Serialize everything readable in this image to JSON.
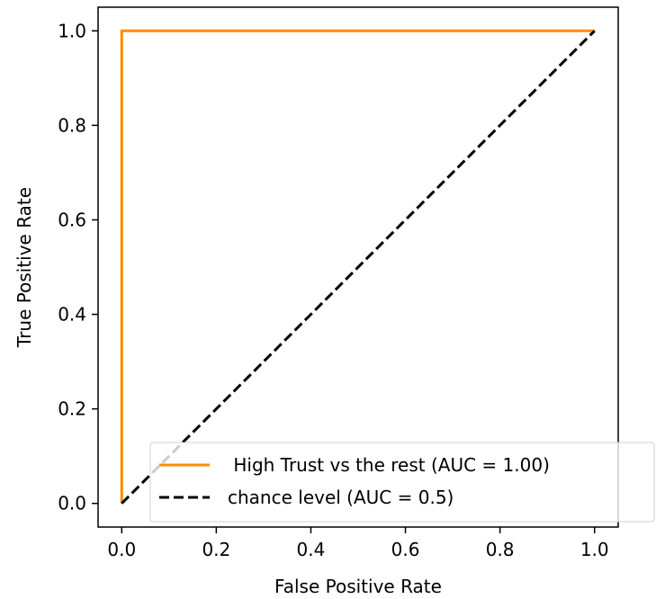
{
  "chart_data": {
    "type": "line",
    "title": "",
    "xlabel": "False Positive Rate",
    "ylabel": "True Positive Rate",
    "xlim": [
      -0.05,
      1.05
    ],
    "ylim": [
      -0.05,
      1.05
    ],
    "xticks": [
      0.0,
      0.2,
      0.4,
      0.6,
      0.8,
      1.0
    ],
    "xtick_labels": [
      "0.0",
      "0.2",
      "0.4",
      "0.6",
      "0.8",
      "1.0"
    ],
    "yticks": [
      0.0,
      0.2,
      0.4,
      0.6,
      0.8,
      1.0
    ],
    "ytick_labels": [
      "0.0",
      "0.2",
      "0.4",
      "0.6",
      "0.8",
      "1.0"
    ],
    "grid": false,
    "legend_position": "lower-right",
    "series": [
      {
        "name": " High Trust vs the rest (AUC = 1.00)",
        "color": "#ff8c00",
        "style": "solid",
        "x": [
          0.0,
          0.0,
          1.0
        ],
        "y": [
          0.0,
          1.0,
          1.0
        ]
      },
      {
        "name": "chance level (AUC = 0.5)",
        "color": "#000000",
        "style": "dashed",
        "x": [
          0.0,
          1.0
        ],
        "y": [
          0.0,
          1.0
        ]
      }
    ]
  }
}
